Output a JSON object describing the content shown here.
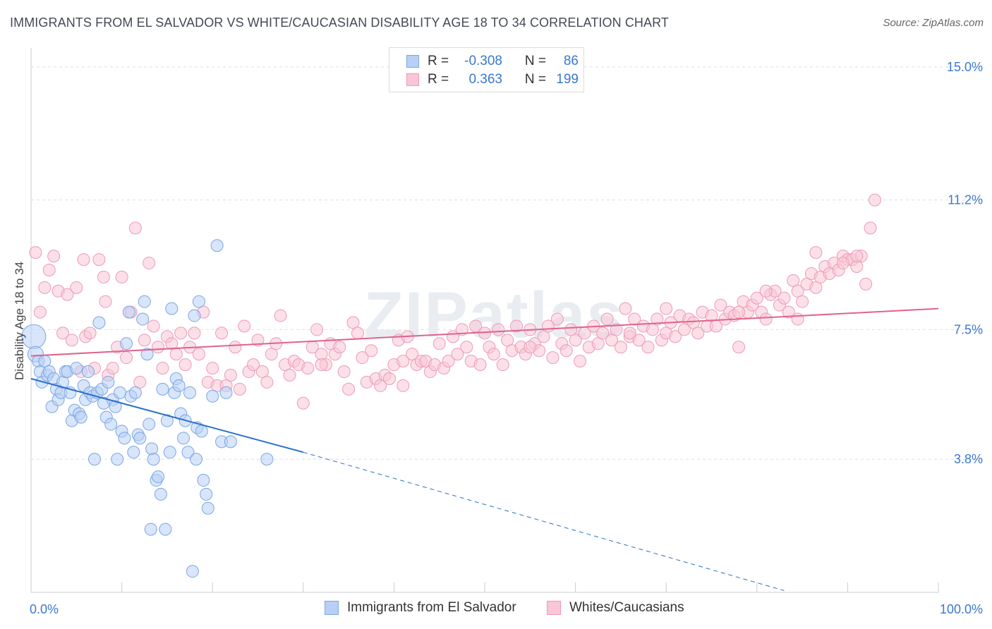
{
  "title": "IMMIGRANTS FROM EL SALVADOR VS WHITE/CAUCASIAN DISABILITY AGE 18 TO 34 CORRELATION CHART",
  "source": "Source: ZipAtlas.com",
  "watermark": "ZIPatlas",
  "legend_top": {
    "rows": [
      {
        "r_label": "R =",
        "r_value": "-0.308",
        "n_label": "N =",
        "n_value": "86",
        "fill": "#b8d0f5",
        "stroke": "#7aa6e3"
      },
      {
        "r_label": "R =",
        "r_value": "0.363",
        "n_label": "N =",
        "n_value": "199",
        "fill": "#f8c6d6",
        "stroke": "#ee9ab6"
      }
    ]
  },
  "legend_bottom": {
    "items": [
      {
        "label": "Immigrants from El Salvador",
        "fill": "#b8d0f5",
        "stroke": "#7aa6e3"
      },
      {
        "label": "Whites/Caucasians",
        "fill": "#f8c6d6",
        "stroke": "#ee9ab6"
      }
    ]
  },
  "chart_data": {
    "type": "scatter",
    "title": "IMMIGRANTS FROM EL SALVADOR VS WHITE/CAUCASIAN DISABILITY AGE 18 TO 34 CORRELATION CHART",
    "xlabel": "",
    "ylabel": "Disability Age 18 to 34",
    "xlim": [
      0,
      100
    ],
    "ylim": [
      0,
      15.4
    ],
    "x_tick_labels": [
      "0.0%",
      "100.0%"
    ],
    "y_ticks": [
      3.8,
      7.5,
      11.2,
      15.0
    ],
    "y_tick_labels": [
      "3.8%",
      "7.5%",
      "11.2%",
      "15.0%"
    ],
    "grid": true,
    "legend_position": "top-center",
    "colors": {
      "blue": "#7aa6e3",
      "blue_line": "#2a6fcc",
      "pink": "#ee9ab6",
      "pink_line": "#e0628c",
      "tick_text": "#3a78d0"
    },
    "series": [
      {
        "name": "Immigrants from El Salvador",
        "color": "blue",
        "trend": {
          "x0": 0,
          "y0": 6.1,
          "x1": 30,
          "y1": 4.0,
          "dash_to_x": 83,
          "dash_y": 0.05
        },
        "points": [
          [
            0.3,
            7.3
          ],
          [
            0.5,
            6.8
          ],
          [
            0.8,
            6.6
          ],
          [
            1.0,
            6.3
          ],
          [
            1.2,
            6.0
          ],
          [
            1.5,
            6.6
          ],
          [
            1.8,
            6.2
          ],
          [
            2.0,
            6.3
          ],
          [
            2.3,
            5.3
          ],
          [
            2.5,
            6.1
          ],
          [
            2.8,
            5.8
          ],
          [
            3.0,
            5.5
          ],
          [
            3.3,
            5.7
          ],
          [
            3.5,
            6.0
          ],
          [
            3.8,
            6.3
          ],
          [
            4.0,
            6.3
          ],
          [
            4.3,
            5.7
          ],
          [
            4.5,
            4.9
          ],
          [
            4.8,
            5.2
          ],
          [
            5.0,
            6.4
          ],
          [
            5.3,
            5.1
          ],
          [
            5.5,
            5.0
          ],
          [
            5.8,
            5.9
          ],
          [
            6.0,
            5.5
          ],
          [
            6.3,
            6.3
          ],
          [
            6.5,
            5.7
          ],
          [
            6.8,
            5.6
          ],
          [
            7.0,
            3.8
          ],
          [
            7.3,
            5.7
          ],
          [
            7.5,
            7.7
          ],
          [
            7.8,
            5.8
          ],
          [
            8.0,
            5.4
          ],
          [
            8.3,
            5.0
          ],
          [
            8.5,
            6.0
          ],
          [
            8.8,
            4.8
          ],
          [
            9.0,
            5.5
          ],
          [
            9.3,
            5.3
          ],
          [
            9.5,
            3.8
          ],
          [
            9.8,
            5.7
          ],
          [
            10.0,
            4.6
          ],
          [
            10.3,
            4.4
          ],
          [
            10.5,
            7.1
          ],
          [
            10.8,
            8.0
          ],
          [
            11.0,
            5.6
          ],
          [
            11.3,
            4.0
          ],
          [
            11.5,
            5.7
          ],
          [
            11.8,
            4.5
          ],
          [
            12.0,
            4.4
          ],
          [
            12.3,
            7.8
          ],
          [
            12.5,
            8.3
          ],
          [
            12.8,
            6.8
          ],
          [
            13.0,
            4.8
          ],
          [
            13.3,
            4.1
          ],
          [
            13.5,
            3.8
          ],
          [
            13.8,
            3.2
          ],
          [
            14.0,
            3.3
          ],
          [
            14.3,
            2.8
          ],
          [
            14.5,
            5.8
          ],
          [
            14.8,
            1.8
          ],
          [
            15.0,
            4.9
          ],
          [
            15.3,
            4.0
          ],
          [
            15.5,
            8.1
          ],
          [
            15.8,
            5.7
          ],
          [
            16.0,
            6.1
          ],
          [
            16.3,
            5.9
          ],
          [
            16.5,
            5.1
          ],
          [
            16.8,
            4.4
          ],
          [
            17.0,
            4.9
          ],
          [
            17.3,
            4.0
          ],
          [
            17.5,
            5.7
          ],
          [
            17.8,
            0.6
          ],
          [
            18.0,
            7.9
          ],
          [
            18.3,
            4.7
          ],
          [
            18.5,
            8.3
          ],
          [
            18.8,
            4.6
          ],
          [
            19.0,
            3.2
          ],
          [
            19.3,
            2.8
          ],
          [
            19.5,
            2.4
          ],
          [
            20.0,
            5.6
          ],
          [
            20.5,
            9.9
          ],
          [
            21.0,
            4.3
          ],
          [
            21.5,
            5.7
          ],
          [
            22.0,
            4.3
          ],
          [
            13.2,
            1.8
          ],
          [
            18.2,
            3.8
          ],
          [
            26.0,
            3.8
          ]
        ]
      },
      {
        "name": "Whites/Caucasians",
        "color": "pink",
        "trend": {
          "x0": 0,
          "y0": 6.75,
          "x1": 100,
          "y1": 8.1
        },
        "points": [
          [
            0.5,
            9.7
          ],
          [
            1,
            8.0
          ],
          [
            1.5,
            8.7
          ],
          [
            2,
            9.2
          ],
          [
            2.5,
            9.6
          ],
          [
            3,
            8.6
          ],
          [
            3.5,
            7.4
          ],
          [
            4,
            8.5
          ],
          [
            4.5,
            7.2
          ],
          [
            5,
            8.7
          ],
          [
            5.5,
            6.3
          ],
          [
            6,
            7.3
          ],
          [
            6.5,
            7.4
          ],
          [
            7,
            6.4
          ],
          [
            7.5,
            9.5
          ],
          [
            8,
            9.0
          ],
          [
            8.5,
            6.2
          ],
          [
            9,
            6.4
          ],
          [
            9.5,
            7.0
          ],
          [
            10,
            9.0
          ],
          [
            10.5,
            6.7
          ],
          [
            11,
            8.0
          ],
          [
            11.5,
            10.4
          ],
          [
            12,
            6.0
          ],
          [
            12.5,
            7.2
          ],
          [
            13,
            9.4
          ],
          [
            13.5,
            7.6
          ],
          [
            14,
            7.0
          ],
          [
            14.5,
            6.4
          ],
          [
            15,
            7.3
          ],
          [
            15.5,
            7.1
          ],
          [
            16,
            6.8
          ],
          [
            16.5,
            7.4
          ],
          [
            17,
            6.5
          ],
          [
            17.5,
            7.0
          ],
          [
            18,
            7.4
          ],
          [
            18.5,
            6.8
          ],
          [
            19,
            8.0
          ],
          [
            19.5,
            6.0
          ],
          [
            20,
            6.4
          ],
          [
            20.5,
            5.9
          ],
          [
            21,
            7.4
          ],
          [
            21.5,
            5.9
          ],
          [
            22,
            6.2
          ],
          [
            22.5,
            7.0
          ],
          [
            23,
            5.8
          ],
          [
            23.5,
            7.6
          ],
          [
            24,
            6.3
          ],
          [
            24.5,
            6.5
          ],
          [
            25,
            7.2
          ],
          [
            25.5,
            6.3
          ],
          [
            26,
            6.0
          ],
          [
            26.5,
            6.8
          ],
          [
            27,
            7.1
          ],
          [
            27.5,
            7.9
          ],
          [
            28,
            6.5
          ],
          [
            28.5,
            6.2
          ],
          [
            29,
            6.6
          ],
          [
            29.5,
            6.5
          ],
          [
            30,
            5.4
          ],
          [
            30.5,
            6.4
          ],
          [
            31,
            7.0
          ],
          [
            31.5,
            7.5
          ],
          [
            32,
            6.8
          ],
          [
            32.5,
            6.5
          ],
          [
            33,
            7.1
          ],
          [
            33.5,
            6.8
          ],
          [
            34,
            7.0
          ],
          [
            34.5,
            6.3
          ],
          [
            35,
            5.8
          ],
          [
            35.5,
            7.7
          ],
          [
            36,
            7.4
          ],
          [
            36.5,
            6.7
          ],
          [
            37,
            6.0
          ],
          [
            37.5,
            6.9
          ],
          [
            38,
            6.1
          ],
          [
            38.5,
            5.9
          ],
          [
            39,
            6.2
          ],
          [
            39.5,
            6.1
          ],
          [
            40,
            6.5
          ],
          [
            40.5,
            7.2
          ],
          [
            41,
            5.9
          ],
          [
            41.5,
            7.3
          ],
          [
            42,
            6.8
          ],
          [
            42.5,
            6.5
          ],
          [
            43,
            6.6
          ],
          [
            43.5,
            6.6
          ],
          [
            44,
            6.3
          ],
          [
            44.5,
            6.5
          ],
          [
            45,
            7.1
          ],
          [
            45.5,
            6.4
          ],
          [
            46,
            6.6
          ],
          [
            46.5,
            7.3
          ],
          [
            47,
            6.8
          ],
          [
            47.5,
            7.5
          ],
          [
            48,
            7.0
          ],
          [
            48.5,
            6.6
          ],
          [
            49,
            7.6
          ],
          [
            49.5,
            6.5
          ],
          [
            50,
            7.4
          ],
          [
            50.5,
            7.0
          ],
          [
            51,
            6.8
          ],
          [
            51.5,
            7.5
          ],
          [
            52,
            6.5
          ],
          [
            52.5,
            7.2
          ],
          [
            53,
            6.9
          ],
          [
            53.5,
            7.6
          ],
          [
            54,
            7.0
          ],
          [
            54.5,
            6.8
          ],
          [
            55,
            7.5
          ],
          [
            55.5,
            7.1
          ],
          [
            56,
            6.9
          ],
          [
            56.5,
            7.3
          ],
          [
            57,
            7.6
          ],
          [
            57.5,
            6.7
          ],
          [
            58,
            7.8
          ],
          [
            58.5,
            7.1
          ],
          [
            59,
            6.9
          ],
          [
            59.5,
            7.5
          ],
          [
            60,
            7.2
          ],
          [
            60.5,
            6.6
          ],
          [
            61,
            7.4
          ],
          [
            61.5,
            7.0
          ],
          [
            62,
            7.6
          ],
          [
            62.5,
            7.1
          ],
          [
            63,
            7.4
          ],
          [
            63.5,
            7.8
          ],
          [
            64,
            7.2
          ],
          [
            64.5,
            7.5
          ],
          [
            65,
            7.0
          ],
          [
            65.5,
            8.1
          ],
          [
            66,
            7.3
          ],
          [
            66.5,
            7.8
          ],
          [
            67,
            7.2
          ],
          [
            67.5,
            7.6
          ],
          [
            68,
            7.0
          ],
          [
            68.5,
            7.5
          ],
          [
            69,
            7.8
          ],
          [
            69.5,
            7.2
          ],
          [
            70,
            7.4
          ],
          [
            70.5,
            7.7
          ],
          [
            71,
            7.3
          ],
          [
            71.5,
            7.9
          ],
          [
            72,
            7.5
          ],
          [
            72.5,
            7.8
          ],
          [
            73,
            7.7
          ],
          [
            73.5,
            7.4
          ],
          [
            74,
            8.0
          ],
          [
            74.5,
            7.6
          ],
          [
            75,
            7.9
          ],
          [
            75.5,
            7.6
          ],
          [
            76,
            8.2
          ],
          [
            76.5,
            7.8
          ],
          [
            77,
            8.0
          ],
          [
            77.5,
            7.9
          ],
          [
            78,
            7.0
          ],
          [
            78.5,
            8.3
          ],
          [
            79,
            8.0
          ],
          [
            79.5,
            8.2
          ],
          [
            80,
            8.4
          ],
          [
            80.5,
            8.0
          ],
          [
            81,
            7.8
          ],
          [
            81.5,
            8.5
          ],
          [
            82,
            8.6
          ],
          [
            82.5,
            8.2
          ],
          [
            83,
            8.4
          ],
          [
            83.5,
            8.0
          ],
          [
            84,
            8.9
          ],
          [
            84.5,
            8.6
          ],
          [
            85,
            8.3
          ],
          [
            85.5,
            8.8
          ],
          [
            86,
            9.1
          ],
          [
            86.5,
            8.7
          ],
          [
            87,
            9.0
          ],
          [
            87.5,
            9.3
          ],
          [
            88,
            9.1
          ],
          [
            88.5,
            9.4
          ],
          [
            89,
            9.2
          ],
          [
            89.5,
            9.6
          ],
          [
            90,
            9.5
          ],
          [
            90.5,
            9.5
          ],
          [
            91,
            9.3
          ],
          [
            91.5,
            9.6
          ],
          [
            92,
            8.8
          ],
          [
            92.5,
            10.4
          ],
          [
            93,
            11.2
          ],
          [
            5.8,
            9.5
          ],
          [
            8.2,
            8.3
          ],
          [
            41,
            6.6
          ],
          [
            55,
            7.0
          ],
          [
            70,
            8.1
          ],
          [
            81,
            8.6
          ],
          [
            86.5,
            9.7
          ],
          [
            91,
            9.6
          ],
          [
            89.5,
            9.4
          ],
          [
            84.5,
            7.8
          ],
          [
            78,
            8.0
          ],
          [
            66,
            7.4
          ],
          [
            32,
            6.5
          ]
        ]
      }
    ]
  }
}
